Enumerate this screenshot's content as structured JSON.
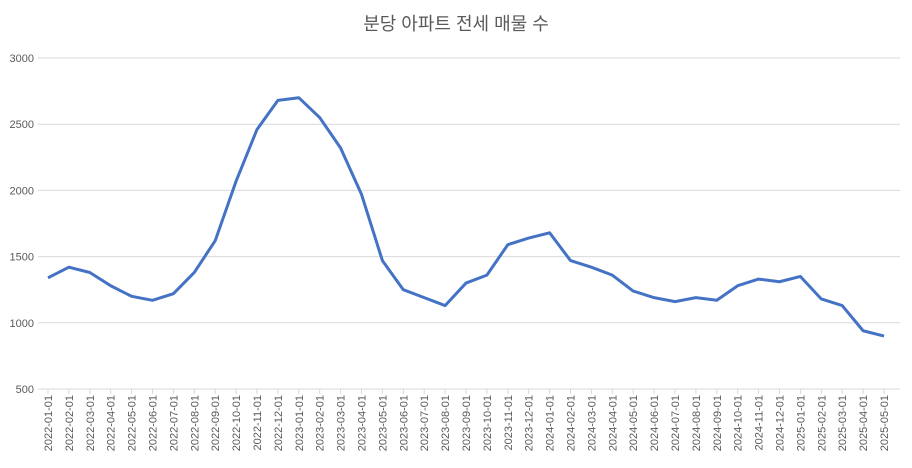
{
  "chart_data": {
    "type": "line",
    "title": "분당 아파트 전세 매물 수",
    "categories": [
      "2022-01-01",
      "2022-02-01",
      "2022-03-01",
      "2022-04-01",
      "2022-05-01",
      "2022-06-01",
      "2022-07-01",
      "2022-08-01",
      "2022-09-01",
      "2022-10-01",
      "2022-11-01",
      "2022-12-01",
      "2023-01-01",
      "2023-02-01",
      "2023-03-01",
      "2023-04-01",
      "2023-05-01",
      "2023-06-01",
      "2023-07-01",
      "2023-08-01",
      "2023-09-01",
      "2023-10-01",
      "2023-11-01",
      "2023-12-01",
      "2024-01-01",
      "2024-02-01",
      "2024-03-01",
      "2024-04-01",
      "2024-05-01",
      "2024-06-01",
      "2024-07-01",
      "2024-08-01",
      "2024-09-01",
      "2024-10-01",
      "2024-11-01",
      "2024-12-01",
      "2025-01-01",
      "2025-02-01",
      "2025-03-01",
      "2025-04-01",
      "2025-05-01"
    ],
    "series": [
      {
        "color": "#4472c4",
        "values": [
          1340,
          1420,
          1380,
          1280,
          1200,
          1170,
          1220,
          1380,
          1620,
          2070,
          2460,
          2680,
          2700,
          2550,
          2320,
          1970,
          1470,
          1250,
          1190,
          1130,
          1300,
          1360,
          1590,
          1640,
          1680,
          1470,
          1420,
          1360,
          1240,
          1190,
          1160,
          1190,
          1170,
          1280,
          1330,
          1310,
          1350,
          1180,
          1130,
          940,
          900
        ]
      }
    ],
    "ylim": [
      500,
      3000
    ],
    "yticks": [
      500,
      1000,
      1500,
      2000,
      2500,
      3000
    ],
    "grid": true
  }
}
